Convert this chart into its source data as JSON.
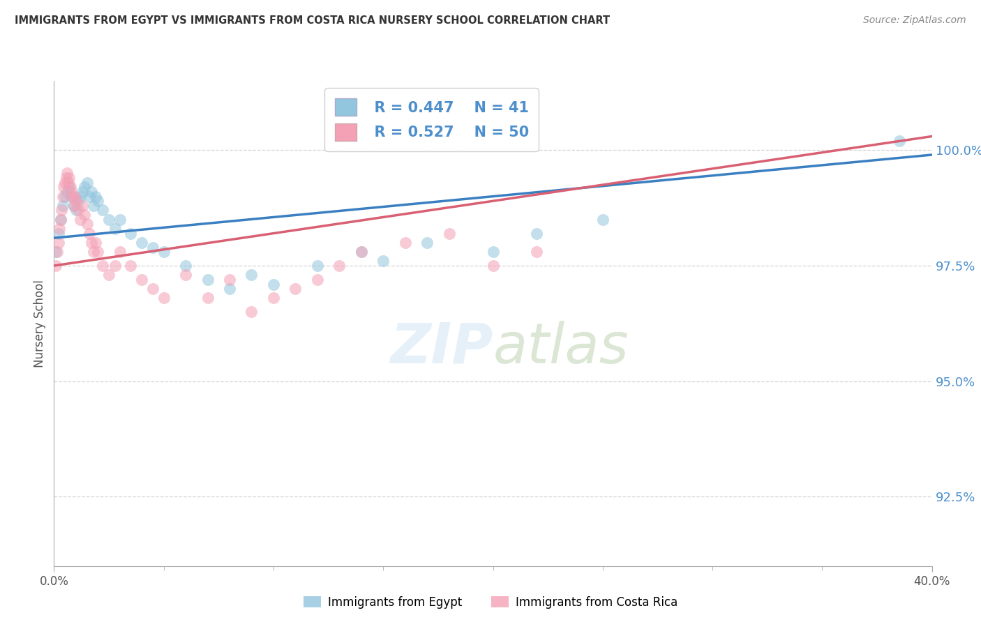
{
  "title": "IMMIGRANTS FROM EGYPT VS IMMIGRANTS FROM COSTA RICA NURSERY SCHOOL CORRELATION CHART",
  "source": "Source: ZipAtlas.com",
  "ylabel": "Nursery School",
  "legend_egypt": "Immigrants from Egypt",
  "legend_costa_rica": "Immigrants from Costa Rica",
  "R_egypt": "R = 0.447",
  "N_egypt": "N = 41",
  "R_costa_rica": "R = 0.527",
  "N_costa_rica": "N = 50",
  "color_egypt": "#92c5de",
  "color_costa_rica": "#f4a0b5",
  "color_egypt_line": "#3a7fc1",
  "color_costa_rica_line": "#d95f72",
  "background_color": "#ffffff",
  "xlim": [
    0.0,
    40.0
  ],
  "ylim": [
    91.0,
    101.5
  ],
  "ytick_vals": [
    92.5,
    95.0,
    97.5,
    100.0
  ],
  "egypt_x": [
    0.1,
    0.2,
    0.3,
    0.4,
    0.5,
    0.6,
    0.7,
    0.8,
    0.9,
    1.0,
    1.1,
    1.2,
    1.3,
    1.4,
    1.5,
    1.6,
    1.7,
    1.8,
    1.9,
    2.0,
    2.2,
    2.5,
    2.8,
    3.0,
    3.5,
    4.0,
    4.5,
    5.0,
    6.0,
    7.0,
    8.0,
    9.0,
    10.0,
    12.0,
    14.0,
    15.0,
    17.0,
    20.0,
    22.0,
    25.0,
    38.5
  ],
  "egypt_y": [
    97.8,
    98.2,
    98.5,
    98.8,
    99.0,
    99.1,
    99.2,
    99.0,
    98.8,
    98.7,
    98.9,
    99.0,
    99.1,
    99.2,
    99.3,
    99.0,
    99.1,
    98.8,
    99.0,
    98.9,
    98.7,
    98.5,
    98.3,
    98.5,
    98.2,
    98.0,
    97.9,
    97.8,
    97.5,
    97.2,
    97.0,
    97.3,
    97.1,
    97.5,
    97.8,
    97.6,
    98.0,
    97.8,
    98.2,
    98.5,
    100.2
  ],
  "costa_rica_x": [
    0.1,
    0.15,
    0.2,
    0.25,
    0.3,
    0.35,
    0.4,
    0.45,
    0.5,
    0.55,
    0.6,
    0.65,
    0.7,
    0.75,
    0.8,
    0.85,
    0.9,
    0.95,
    1.0,
    1.1,
    1.2,
    1.3,
    1.4,
    1.5,
    1.6,
    1.7,
    1.8,
    1.9,
    2.0,
    2.2,
    2.5,
    2.8,
    3.0,
    3.5,
    4.0,
    4.5,
    5.0,
    6.0,
    7.0,
    8.0,
    9.0,
    10.0,
    11.0,
    12.0,
    13.0,
    14.0,
    16.0,
    18.0,
    20.0,
    22.0
  ],
  "costa_rica_y": [
    97.5,
    97.8,
    98.0,
    98.3,
    98.5,
    98.7,
    99.0,
    99.2,
    99.3,
    99.4,
    99.5,
    99.3,
    99.4,
    99.2,
    99.1,
    99.0,
    98.8,
    99.0,
    98.9,
    98.7,
    98.5,
    98.8,
    98.6,
    98.4,
    98.2,
    98.0,
    97.8,
    98.0,
    97.8,
    97.5,
    97.3,
    97.5,
    97.8,
    97.5,
    97.2,
    97.0,
    96.8,
    97.3,
    96.8,
    97.2,
    96.5,
    96.8,
    97.0,
    97.2,
    97.5,
    97.8,
    98.0,
    98.2,
    97.5,
    97.8
  ]
}
